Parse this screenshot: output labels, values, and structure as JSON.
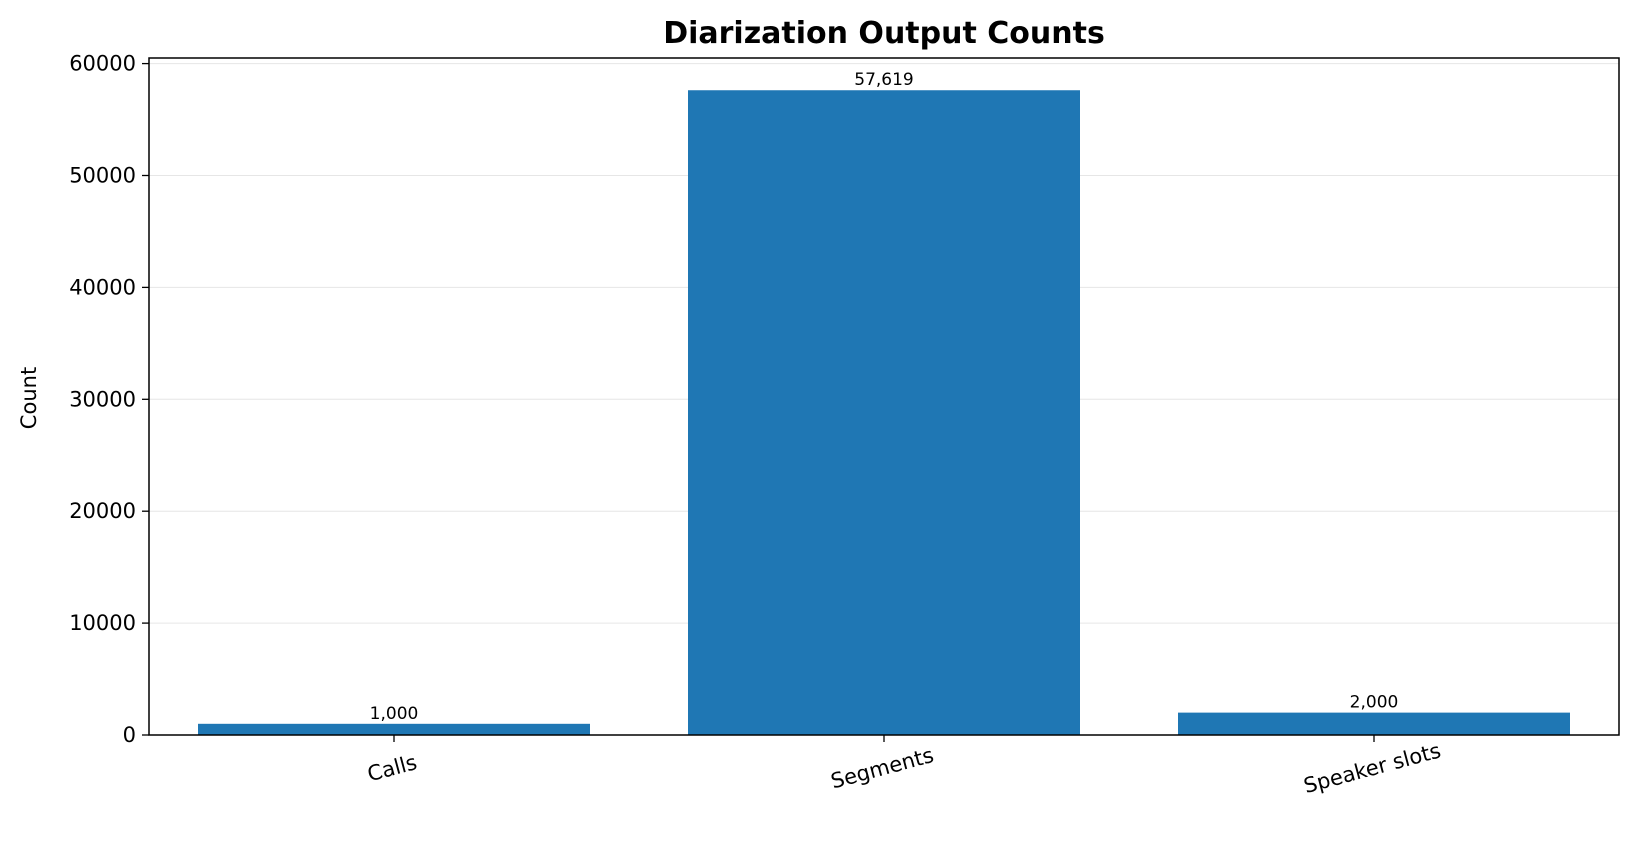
{
  "chart_data": {
    "type": "bar",
    "title": "Diarization Output Counts",
    "xlabel": "",
    "ylabel": "Count",
    "categories": [
      "Calls",
      "Segments",
      "Speaker slots"
    ],
    "values": [
      1000,
      57619,
      2000
    ],
    "data_labels": [
      "1,000",
      "57,619",
      "2,000"
    ],
    "ylim": [
      0,
      60500
    ],
    "yticks": [
      0,
      10000,
      20000,
      30000,
      40000,
      50000,
      60000
    ],
    "ytick_labels": [
      "0",
      "10000",
      "20000",
      "30000",
      "40000",
      "50000",
      "60000"
    ],
    "grid": "y",
    "legend": "none",
    "bar_color": "#1f77b4",
    "xtick_rotation_deg": 15
  }
}
